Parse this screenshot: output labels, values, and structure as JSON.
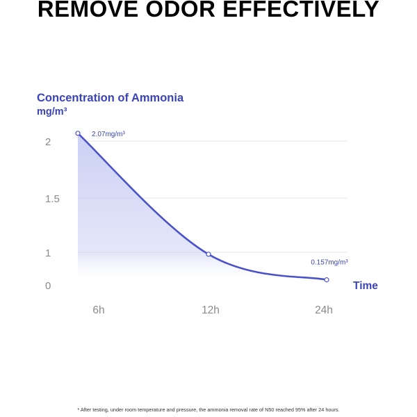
{
  "headline": "REMOVE ODOR EFFECTIVELY",
  "footnote": "* After testing, under room temperature and pressure, the ammonia removal rate of N50 reached 95% after 24 hours.",
  "colors": {
    "line": "#4a52c8",
    "fill_top": "#c6cbf2",
    "label": "#3b44b6",
    "tick": "#8a8a8a",
    "grid": "#e6e6e6"
  },
  "chart_data": {
    "type": "area",
    "title": "",
    "ylabel_line1": "Concentration of Ammonia",
    "ylabel_line2": "mg/m³",
    "xlabel": "Time",
    "categories": [
      "6h",
      "12h",
      "24h"
    ],
    "y_ticks": [
      "2",
      "1.5",
      "1",
      "0"
    ],
    "series": [
      {
        "points": [
          {
            "x": "6h",
            "y": 2.07
          },
          {
            "x": "12h",
            "y": 0.94
          },
          {
            "x": "24h",
            "y": 0.157
          }
        ]
      }
    ],
    "annotations": [
      {
        "at": "6h",
        "text": "2.07mg/m³"
      },
      {
        "at": "24h",
        "text": "0.157mg/m³"
      }
    ],
    "grid": true,
    "legend": "none"
  }
}
